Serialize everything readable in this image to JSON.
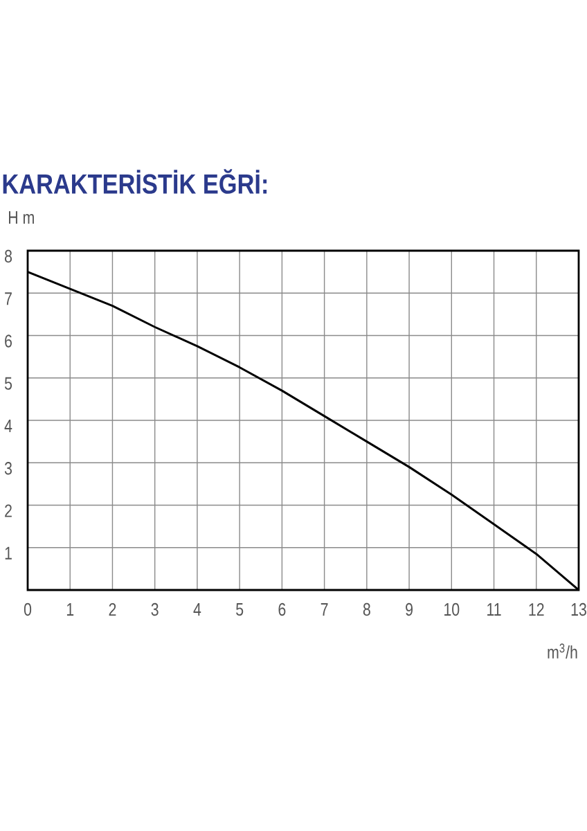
{
  "chart_data": {
    "type": "line",
    "title": "KARAKTERİSTİK EĞRİ:",
    "xlabel": "m$^{3}$/h",
    "ylabel": "H m",
    "x": [
      0,
      1,
      2,
      3,
      4,
      5,
      6,
      7,
      8,
      9,
      10,
      11,
      12,
      13
    ],
    "values": [
      7.5,
      7.1,
      6.7,
      6.2,
      5.75,
      5.25,
      4.7,
      4.1,
      3.5,
      2.9,
      2.25,
      1.55,
      0.85,
      0
    ],
    "color": "#000000",
    "xlim": [
      0,
      13
    ],
    "ylim": [
      0,
      8
    ],
    "xticks": [
      0,
      1,
      2,
      3,
      4,
      5,
      6,
      7,
      8,
      9,
      10,
      11,
      12,
      13
    ],
    "yticks": [
      1,
      2,
      3,
      4,
      5,
      6,
      7,
      8
    ],
    "grid": true
  }
}
